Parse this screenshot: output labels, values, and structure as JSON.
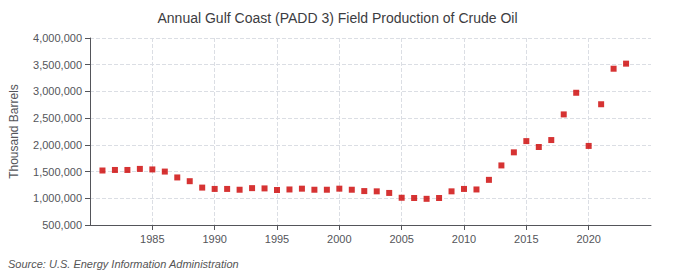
{
  "chart_data": {
    "type": "scatter",
    "title": "Annual Gulf Coast (PADD 3) Field Production of Crude Oil",
    "ylabel": "Thousand Barrels",
    "annotation": "Source: U.S. Energy Information Administration",
    "color": "#cc0000",
    "marker": "square",
    "grid": true,
    "x": [
      1981,
      1982,
      1983,
      1984,
      1985,
      1986,
      1987,
      1988,
      1989,
      1990,
      1991,
      1992,
      1993,
      1994,
      1995,
      1996,
      1997,
      1998,
      1999,
      2000,
      2001,
      2002,
      2003,
      2004,
      2005,
      2006,
      2007,
      2008,
      2009,
      2010,
      2011,
      2012,
      2013,
      2014,
      2015,
      2016,
      2017,
      2018,
      2019,
      2020,
      2021,
      2022,
      2023
    ],
    "values": [
      1520000,
      1530000,
      1530000,
      1550000,
      1540000,
      1500000,
      1390000,
      1320000,
      1200000,
      1175000,
      1175000,
      1160000,
      1190000,
      1185000,
      1155000,
      1165000,
      1180000,
      1160000,
      1160000,
      1180000,
      1160000,
      1135000,
      1130000,
      1100000,
      1010000,
      1005000,
      990000,
      1005000,
      1130000,
      1175000,
      1165000,
      1345000,
      1615000,
      1860000,
      2070000,
      1960000,
      2090000,
      2570000,
      2975000,
      1980000,
      2760000,
      3425000,
      3520000
    ],
    "xlim": [
      1980,
      2025
    ],
    "xticks": [
      1985,
      1990,
      1995,
      2000,
      2005,
      2010,
      2015,
      2020
    ],
    "ylim": [
      500000,
      4000000
    ],
    "yticks": [
      {
        "value": 500000,
        "label": "500,000"
      },
      {
        "value": 1000000,
        "label": "1,000,000"
      },
      {
        "value": 1500000,
        "label": "1,500,000"
      },
      {
        "value": 2000000,
        "label": "2,000,000"
      },
      {
        "value": 2500000,
        "label": "2,500,000"
      },
      {
        "value": 3000000,
        "label": "3,000,000"
      },
      {
        "value": 3500000,
        "label": "3,500,000"
      },
      {
        "value": 4000000,
        "label": "4,000,000"
      }
    ]
  }
}
